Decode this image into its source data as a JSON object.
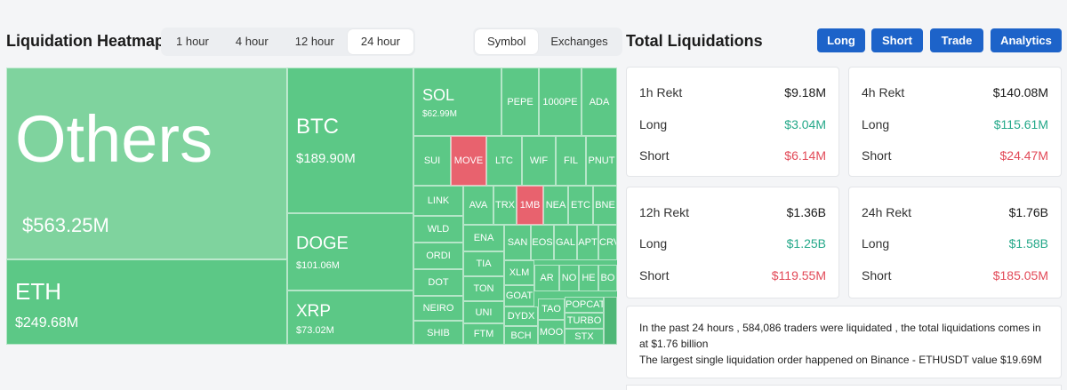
{
  "heatmap": {
    "title": "Liquidation Heatmap",
    "time_options": [
      "1 hour",
      "4 hour",
      "12 hour",
      "24 hour"
    ],
    "time_selected": "24 hour",
    "view_options": [
      "Symbol",
      "Exchanges"
    ],
    "view_selected": "Symbol",
    "big": {
      "others": {
        "name": "Others",
        "value": "$563.25M"
      },
      "eth": {
        "name": "ETH",
        "value": "$249.68M"
      },
      "btc": {
        "name": "BTC",
        "value": "$189.90M"
      },
      "doge": {
        "name": "DOGE",
        "value": "$101.06M"
      },
      "xrp": {
        "name": "XRP",
        "value": "$73.02M"
      },
      "sol": {
        "name": "SOL",
        "value": "$62.99M"
      }
    },
    "small": {
      "pepe": "PEPE",
      "1000pe": "1000PE",
      "ada": "ADA",
      "sui": "SUI",
      "move": "MOVE",
      "ltc": "LTC",
      "wif": "WIF",
      "fil": "FIL",
      "pnut": "PNUT",
      "link": "LINK",
      "ava": "AVA",
      "trx": "TRX",
      "1mb": "1MB",
      "nea": "NEA",
      "etc": "ETC",
      "bne": "BNE",
      "wld": "WLD",
      "ena": "ENA",
      "san": "SAN",
      "eos": "EOS",
      "gal": "GAL",
      "apt": "APT",
      "crv": "CRV",
      "ordi": "ORDI",
      "tia": "TIA",
      "xlm": "XLM",
      "dot": "DOT",
      "ton": "TON",
      "ar": "AR",
      "no": "NO",
      "he": "HE",
      "bo": "BO",
      "goat": "GOAT",
      "neiro": "NEIRO",
      "uni": "UNI",
      "dydx": "DYDX",
      "tao": "TAO",
      "popcat": "POPCAT",
      "turbo": "TURBO",
      "shib": "SHIB",
      "ftm": "FTM",
      "bch": "BCH",
      "moo": "MOO",
      "stx": "STX"
    }
  },
  "total": {
    "title": "Total Liquidations",
    "buttons": [
      "Long",
      "Short",
      "Trade",
      "Analytics"
    ],
    "cards": [
      {
        "title": "1h Rekt",
        "total": "$9.18M",
        "long_label": "Long",
        "long": "$3.04M",
        "short_label": "Short",
        "short": "$6.14M"
      },
      {
        "title": "4h Rekt",
        "total": "$140.08M",
        "long_label": "Long",
        "long": "$115.61M",
        "short_label": "Short",
        "short": "$24.47M"
      },
      {
        "title": "12h Rekt",
        "total": "$1.36B",
        "long_label": "Long",
        "long": "$1.25B",
        "short_label": "Short",
        "short": "$119.55M"
      },
      {
        "title": "24h Rekt",
        "total": "$1.76B",
        "long_label": "Long",
        "long": "$1.58B",
        "short_label": "Short",
        "short": "$185.05M"
      }
    ],
    "summary_line1": "In the past 24 hours , 584,086 traders were liquidated , the total liquidations comes in at $1.76 billion",
    "summary_line2": "The largest single liquidation order happened on Binance - ETHUSDT value $19.69M"
  },
  "colors": {
    "long_green": "#5cc886",
    "short_red": "#e8626e",
    "button_blue": "#1d63c9"
  }
}
